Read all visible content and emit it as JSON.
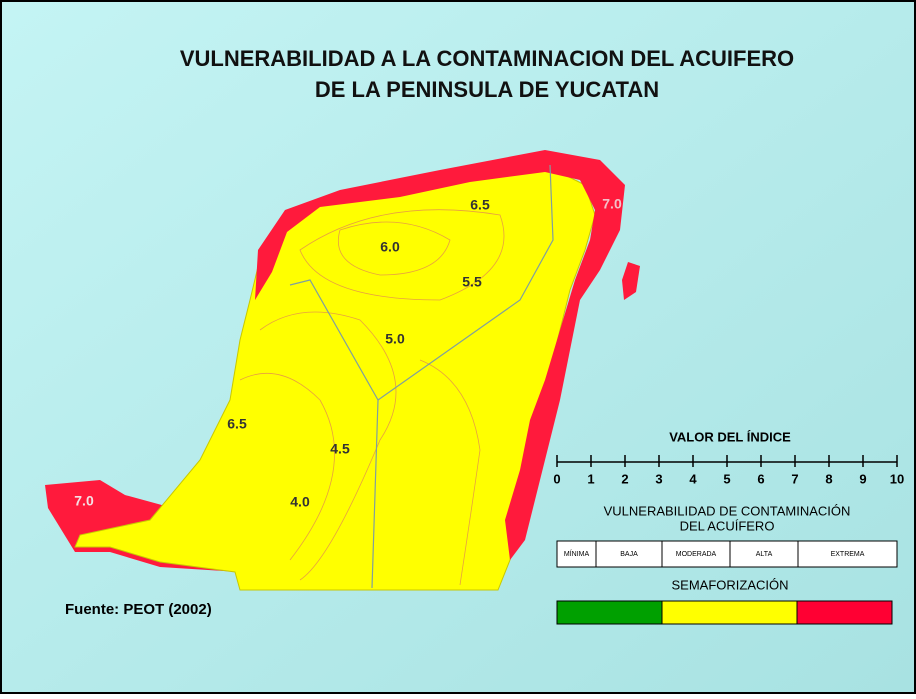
{
  "title": [
    "VULNERABILIDAD A LA CONTAMINACION DEL ACUIFERO",
    "DE LA PENINSULA DE YUCATAN"
  ],
  "map": {
    "labels": [
      "6.5",
      "7.0",
      "6.0",
      "5.5",
      "5.0",
      "6.5",
      "4.5",
      "7.0",
      "4.0"
    ]
  },
  "legend": {
    "scale_title": "VALOR DEL ÍNDICE",
    "scale_ticks": [
      "0",
      "1",
      "2",
      "3",
      "4",
      "5",
      "6",
      "7",
      "8",
      "9",
      "10"
    ],
    "classes_title": [
      "VULNERABILIDAD DE CONTAMINACIÓN",
      "DEL ACUÍFERO"
    ],
    "classes": [
      "MÍNIMA",
      "BAJA",
      "MODERADA",
      "ALTA",
      "EXTREMA"
    ],
    "semaforo_title": "SEMAFORIZACIÓN",
    "semaforo_colors": [
      "#00a000",
      "#ffff00",
      "#ff0033"
    ]
  },
  "source": "Fuente: PEOT (2002)"
}
